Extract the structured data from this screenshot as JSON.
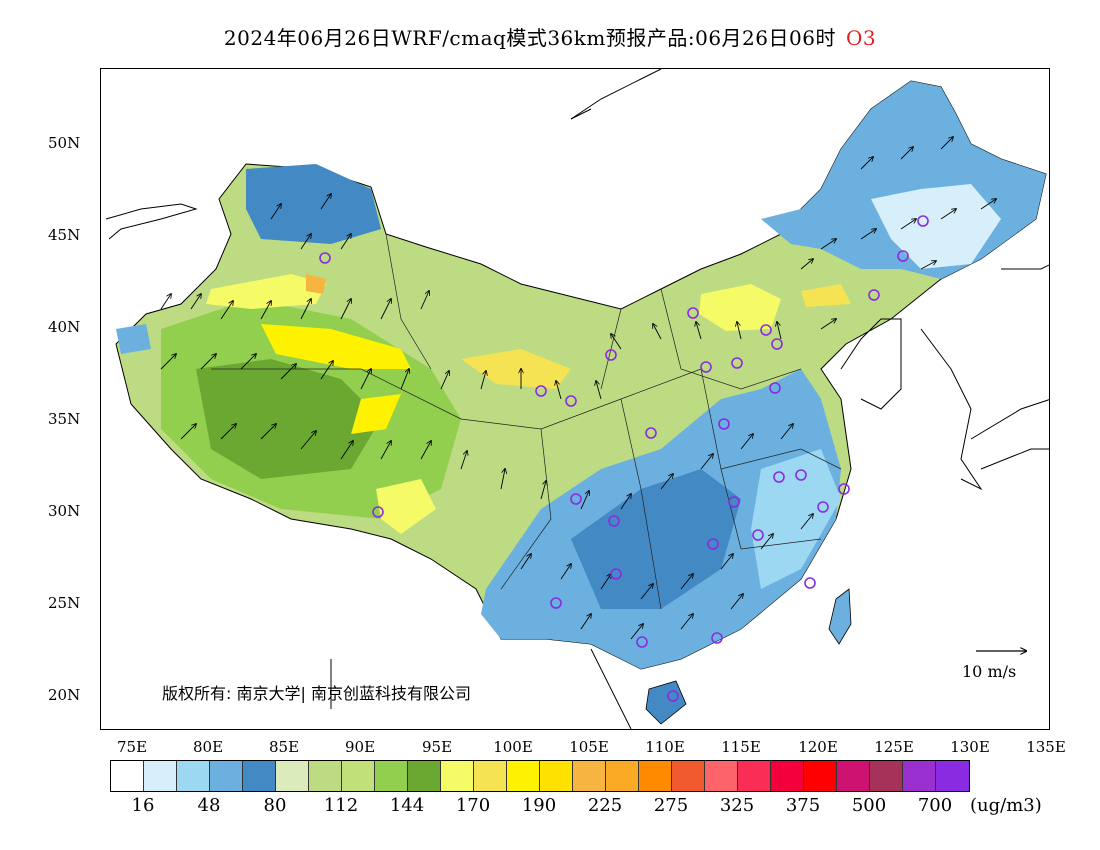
{
  "title": {
    "text": "2024年06月26日WRF/cmaq模式36km预报产品:06月26日06时",
    "pollutant": "O3"
  },
  "map": {
    "lat_labels": [
      "50N",
      "45N",
      "40N",
      "35N",
      "30N",
      "25N",
      "20N"
    ],
    "lon_labels": [
      "75E",
      "80E",
      "85E",
      "90E",
      "95E",
      "100E",
      "105E",
      "110E",
      "115E",
      "120E",
      "125E",
      "130E",
      "135E"
    ],
    "copyright": "版权所有: 南京大学| 南京创蓝科技有限公司",
    "wind_reference": "10 m/s",
    "station_marker_color": "#8a2be2"
  },
  "colorbar": {
    "colors": [
      "#ffffff",
      "#d6effa",
      "#9dd8f3",
      "#6bb0de",
      "#4389c4",
      "#dcebbb",
      "#bcdb83",
      "#c1e07a",
      "#93cf4f",
      "#6aa832",
      "#f4fb66",
      "#f5e353",
      "#fef200",
      "#ffe100",
      "#f6b540",
      "#fbaa25",
      "#ff8a00",
      "#f15a2c",
      "#fc6469",
      "#f92d55",
      "#f3003c",
      "#ff0000",
      "#cd1272",
      "#a6325a",
      "#9b30d0",
      "#8a2be2"
    ],
    "tick_labels": [
      "16",
      "48",
      "80",
      "112",
      "144",
      "170",
      "190",
      "225",
      "275",
      "325",
      "375",
      "500",
      "700"
    ],
    "unit": "(ug/m3)"
  }
}
